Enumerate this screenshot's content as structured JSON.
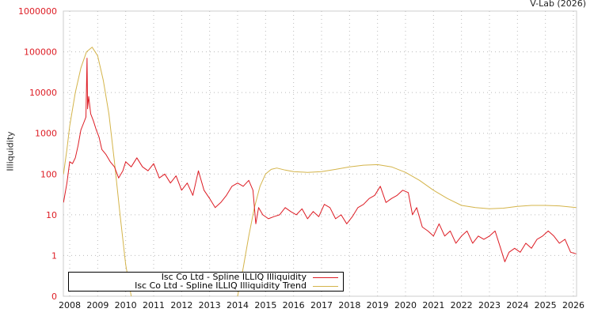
{
  "credit": "V-Lab (2026)",
  "chart_data": {
    "type": "line",
    "title": "",
    "xlabel": "",
    "ylabel": "Illiquidity",
    "yscale": "log",
    "ylim": [
      0.1,
      1000000
    ],
    "xlim": [
      2007.78,
      2026.1
    ],
    "y_ticks": [
      {
        "value": 1000000,
        "label": "1000000"
      },
      {
        "value": 100000,
        "label": "100000"
      },
      {
        "value": 10000,
        "label": "10000"
      },
      {
        "value": 1000,
        "label": "1000"
      },
      {
        "value": 100,
        "label": "100"
      },
      {
        "value": 10,
        "label": "10"
      },
      {
        "value": 1,
        "label": "1"
      },
      {
        "value": 0.1,
        "label": "0"
      }
    ],
    "x_ticks": [
      "2008",
      "2009",
      "2010",
      "2011",
      "2012",
      "2013",
      "2014",
      "2015",
      "2016",
      "2017",
      "2018",
      "2019",
      "2020",
      "2021",
      "2022",
      "2023",
      "2024",
      "2025",
      "2026"
    ],
    "grid": true,
    "legend_position": "bottom-left",
    "series": [
      {
        "name": "Isc Co Ltd - Spline ILLIQ Illiquidity",
        "color": "#dd1c24",
        "x": [
          2007.78,
          2007.9,
          2008.0,
          2008.1,
          2008.2,
          2008.3,
          2008.4,
          2008.5,
          2008.58,
          2008.62,
          2008.64,
          2008.68,
          2008.75,
          2008.85,
          2008.95,
          2009.05,
          2009.15,
          2009.3,
          2009.45,
          2009.6,
          2009.75,
          2009.9,
          2010.0,
          2010.2,
          2010.4,
          2010.6,
          2010.8,
          2011.0,
          2011.2,
          2011.4,
          2011.6,
          2011.8,
          2012.0,
          2012.2,
          2012.4,
          2012.6,
          2012.8,
          2013.0,
          2013.2,
          2013.4,
          2013.6,
          2013.8,
          2014.0,
          2014.2,
          2014.4,
          2014.55,
          2014.65,
          2014.75,
          2014.9,
          2015.1,
          2015.3,
          2015.5,
          2015.7,
          2015.9,
          2016.1,
          2016.3,
          2016.5,
          2016.7,
          2016.9,
          2017.1,
          2017.3,
          2017.5,
          2017.7,
          2017.9,
          2018.1,
          2018.3,
          2018.5,
          2018.7,
          2018.9,
          2019.1,
          2019.3,
          2019.5,
          2019.7,
          2019.9,
          2020.1,
          2020.25,
          2020.4,
          2020.6,
          2020.8,
          2021.0,
          2021.2,
          2021.4,
          2021.6,
          2021.8,
          2022.0,
          2022.2,
          2022.4,
          2022.6,
          2022.8,
          2023.0,
          2023.2,
          2023.4,
          2023.55,
          2023.7,
          2023.9,
          2024.1,
          2024.3,
          2024.5,
          2024.7,
          2024.9,
          2025.1,
          2025.3,
          2025.5,
          2025.7,
          2025.9,
          2026.1
        ],
        "values": [
          20,
          60,
          200,
          180,
          250,
          500,
          1200,
          1800,
          2500,
          70000,
          4000,
          8000,
          3000,
          2000,
          1200,
          800,
          400,
          300,
          200,
          150,
          80,
          120,
          200,
          150,
          250,
          150,
          120,
          180,
          80,
          100,
          60,
          90,
          40,
          60,
          30,
          120,
          40,
          25,
          15,
          20,
          30,
          50,
          60,
          50,
          70,
          40,
          6,
          15,
          10,
          8,
          9,
          10,
          15,
          12,
          10,
          14,
          8,
          12,
          9,
          18,
          15,
          8,
          10,
          6,
          9,
          15,
          18,
          25,
          30,
          50,
          20,
          25,
          30,
          40,
          35,
          10,
          15,
          5,
          4,
          3,
          6,
          3,
          4,
          2,
          3,
          4,
          2,
          3,
          2.5,
          3,
          4,
          1.5,
          0.7,
          1.2,
          1.5,
          1.2,
          2,
          1.5,
          2.5,
          3,
          4,
          3,
          2,
          2.5,
          1.2,
          1.1
        ]
      },
      {
        "name": "Isc Co Ltd - Spline ILLIQ Illiquidity Trend",
        "color": "#d4b44a",
        "x": [
          2007.78,
          2007.9,
          2008.0,
          2008.2,
          2008.4,
          2008.6,
          2008.8,
          2009.0,
          2009.2,
          2009.4,
          2009.6,
          2009.8,
          2010.0,
          2010.2,
          2010.3,
          2013.9,
          2014.0,
          2014.2,
          2014.4,
          2014.6,
          2014.8,
          2015.0,
          2015.2,
          2015.4,
          2015.7,
          2016.0,
          2016.5,
          2017.0,
          2017.5,
          2018.0,
          2018.5,
          2019.0,
          2019.5,
          2020.0,
          2020.5,
          2021.0,
          2021.5,
          2022.0,
          2022.5,
          2023.0,
          2023.5,
          2024.0,
          2024.5,
          2025.0,
          2025.5,
          2026.1
        ],
        "values": [
          100,
          400,
          1500,
          10000,
          40000,
          100000,
          130000,
          80000,
          20000,
          3000,
          200,
          10,
          0.6,
          0.1,
          0.03,
          0.03,
          0.1,
          0.5,
          3,
          15,
          50,
          100,
          130,
          140,
          125,
          115,
          110,
          115,
          130,
          150,
          165,
          170,
          150,
          110,
          70,
          40,
          25,
          17,
          15,
          14,
          14.5,
          16,
          17,
          17,
          16.5,
          15
        ]
      }
    ]
  }
}
